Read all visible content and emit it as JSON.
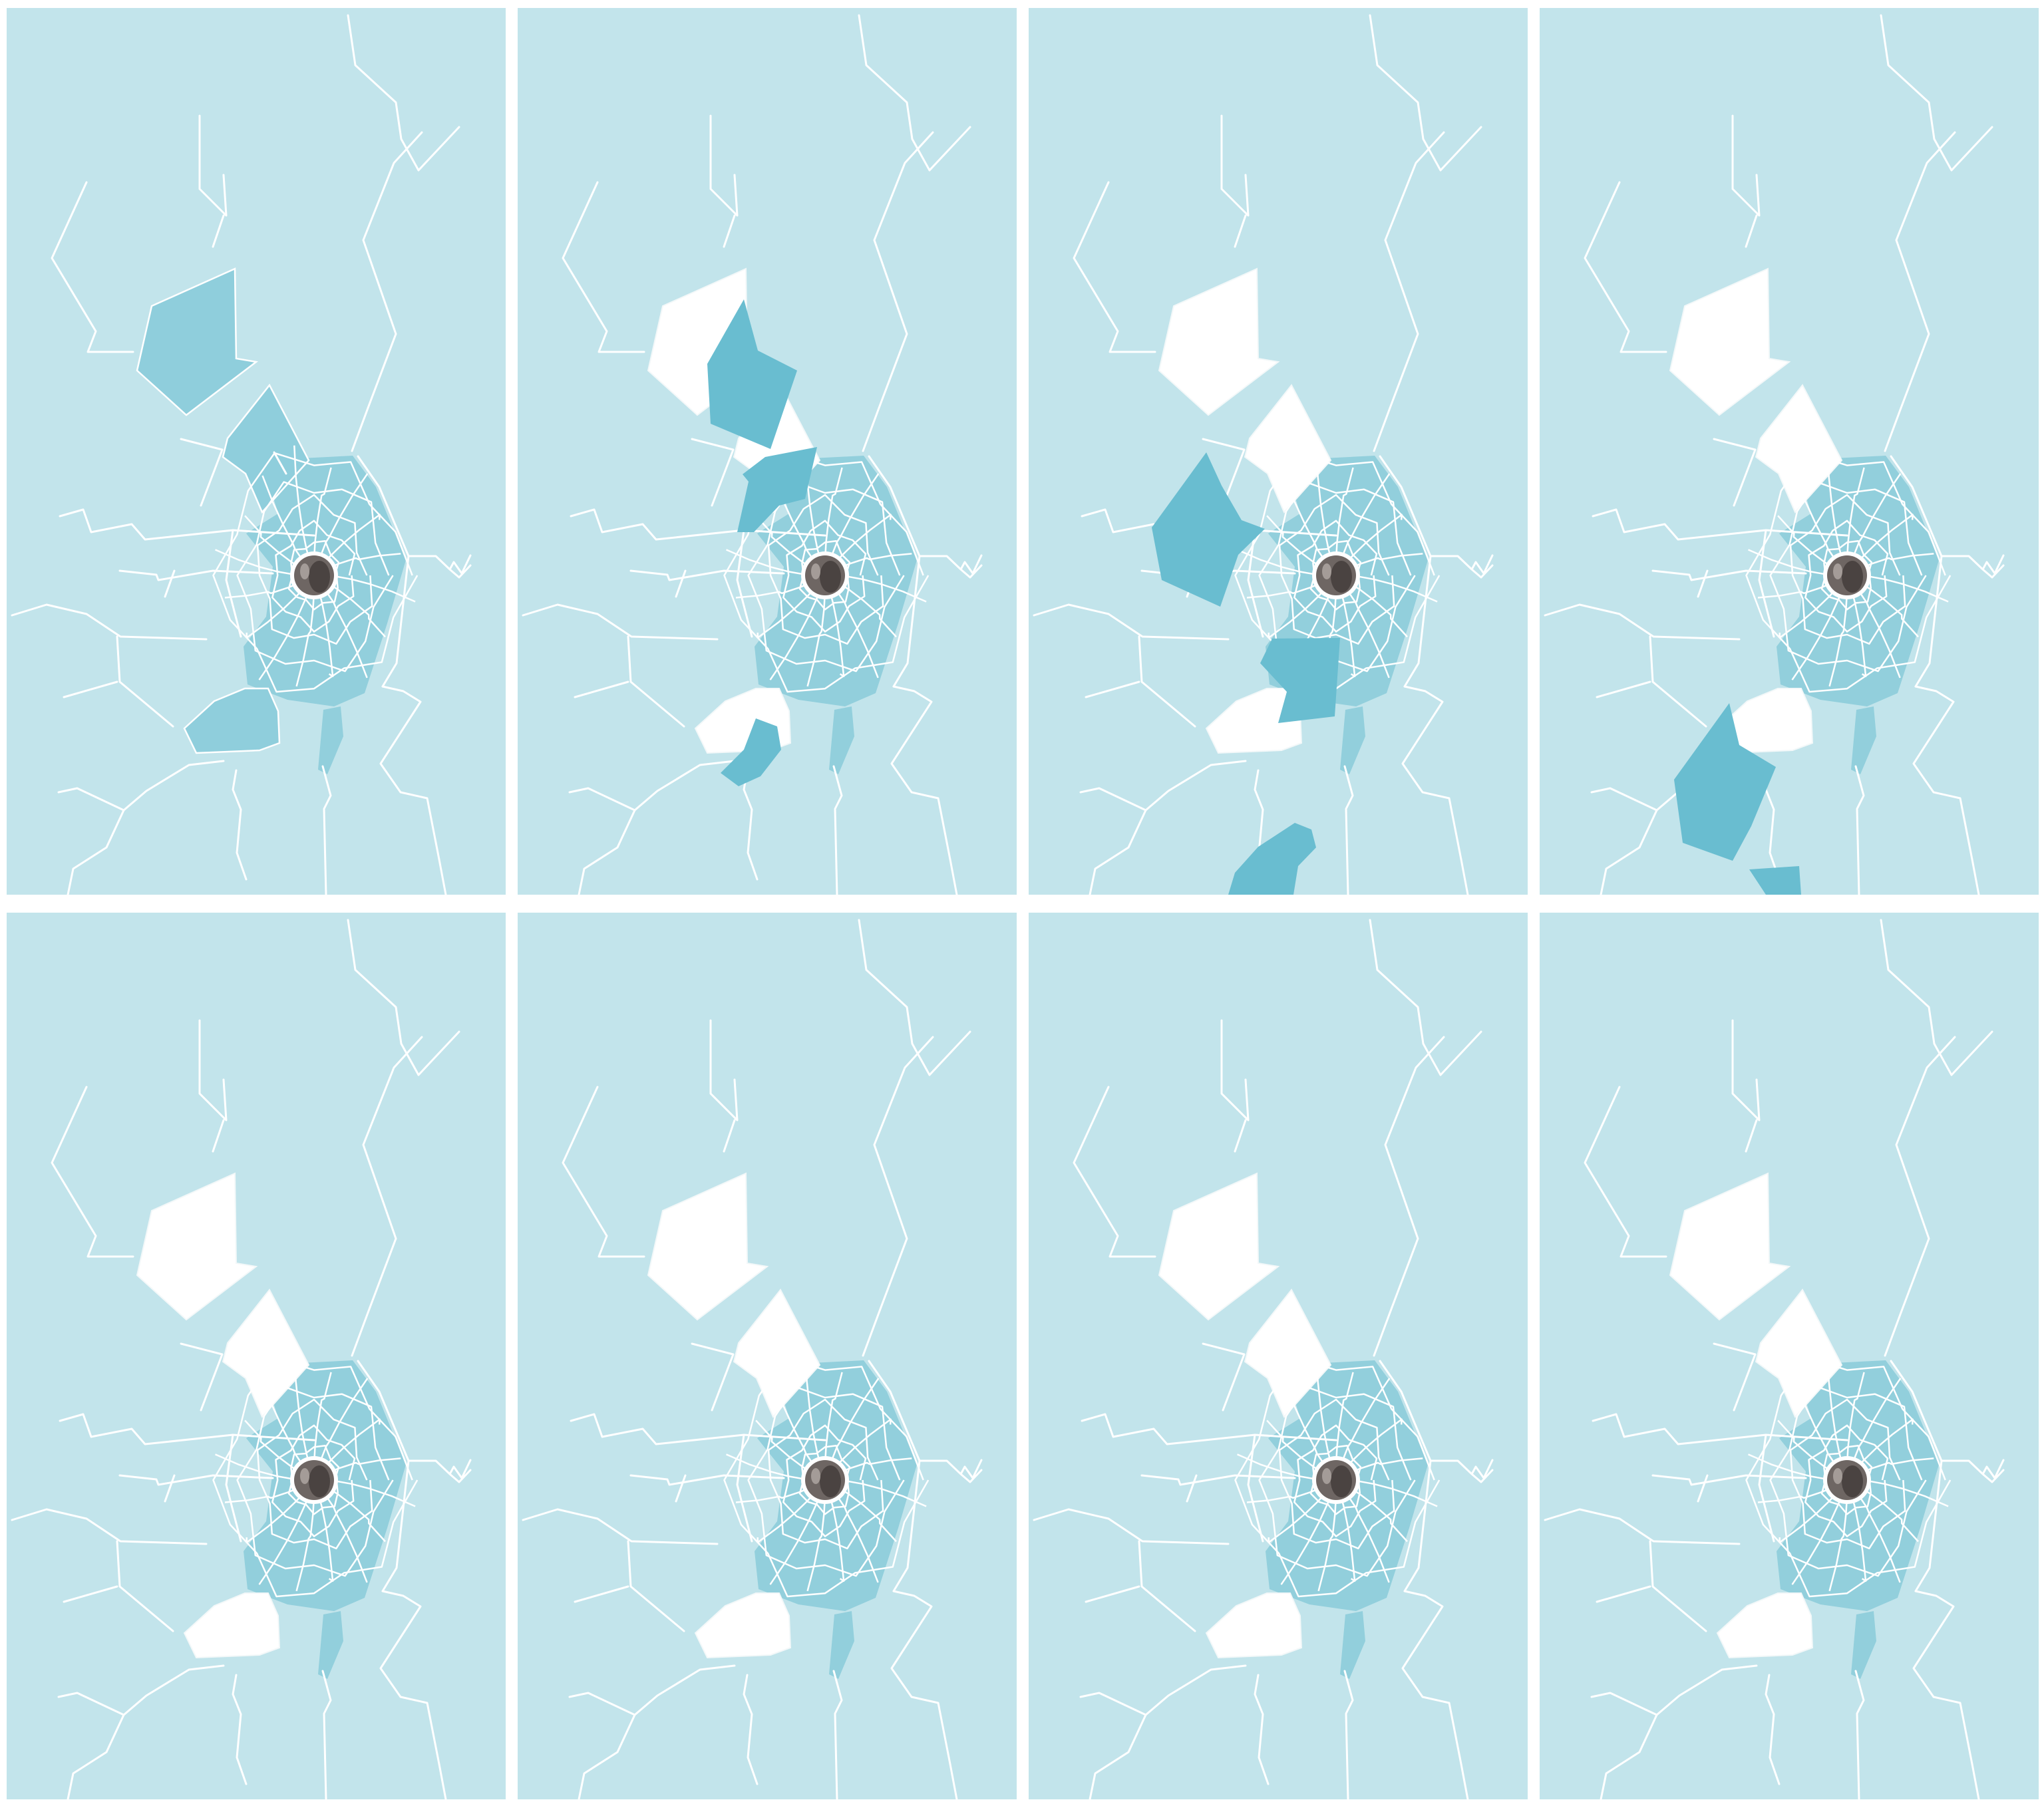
{
  "sheet": {
    "background": "#ffffff",
    "glass_color": "#c2e4eb",
    "crack_color": "#ffffff",
    "cracked_shard_color": "#8fcedc",
    "flying_shard_color": "#69bdd0",
    "hole_color": "#ffffff",
    "bullet_color": "#6e6663"
  },
  "frames": [
    {
      "index": 1,
      "shard_states": [
        "cracked",
        "cracked",
        "cracked"
      ],
      "flying_shards": []
    },
    {
      "index": 2,
      "shard_states": [
        "hole",
        "hole",
        "hole"
      ],
      "flying_shards": [
        "upper-fragment",
        "middle-fragment",
        "lower-fragment"
      ]
    },
    {
      "index": 3,
      "shard_states": [
        "hole",
        "hole",
        "hole"
      ],
      "flying_shards": [
        "upper-fragment",
        "middle-fragment",
        "lower-fragment"
      ]
    },
    {
      "index": 4,
      "shard_states": [
        "hole",
        "hole",
        "hole"
      ],
      "flying_shards": [
        "upper-fragment",
        "lower-fragment"
      ]
    },
    {
      "index": 5,
      "shard_states": [
        "hole",
        "hole",
        "hole"
      ],
      "flying_shards": []
    },
    {
      "index": 6,
      "shard_states": [
        "hole",
        "hole",
        "hole"
      ],
      "flying_shards": []
    },
    {
      "index": 7,
      "shard_states": [
        "hole",
        "hole",
        "hole"
      ],
      "flying_shards": []
    },
    {
      "index": 8,
      "shard_states": [
        "hole",
        "hole",
        "hole"
      ],
      "flying_shards": []
    }
  ],
  "icons": {
    "bullet": "bullet-hole-icon",
    "crack": "glass-crack-lines"
  }
}
